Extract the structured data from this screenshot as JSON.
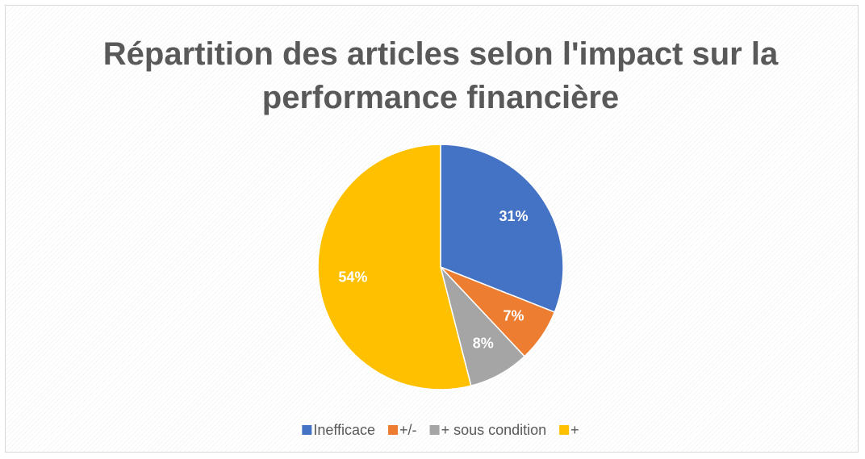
{
  "chart_data": {
    "type": "pie",
    "title": "Répartition des articles selon l'impact sur la performance financière",
    "categories": [
      "Inefficace",
      "+/-",
      "+ sous condition",
      "+"
    ],
    "values": [
      31,
      7,
      8,
      54
    ],
    "value_labels": [
      "31%",
      "7%",
      "8%",
      "54%"
    ],
    "colors": [
      "#4472c4",
      "#ed7d31",
      "#a5a5a5",
      "#ffc000"
    ],
    "legend": "bottom"
  }
}
